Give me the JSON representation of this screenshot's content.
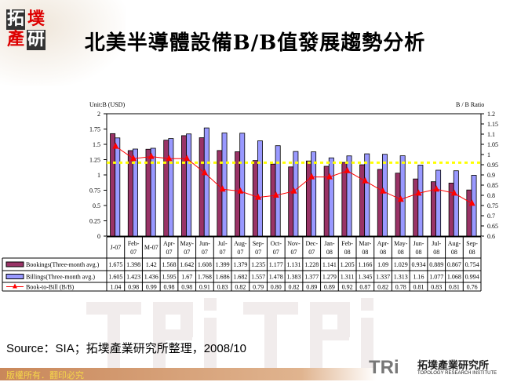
{
  "header": {
    "title": "北美半導體設備B/B值發展趨勢分析",
    "logo_chars": [
      "拓",
      "墣",
      "產",
      "研"
    ]
  },
  "footer": {
    "source": "Source：SIA；拓墣產業研究所整理，2008/10",
    "copyright": "版權所有．翻印必究",
    "brand_en": "TOPOLOGY RESEARCH INSTITUTE",
    "brand_cn": "拓墣產業研究所",
    "brand_logo": "TRi"
  },
  "chart_data": {
    "type": "bar",
    "ylabel_left": "Unit:B (USD)",
    "ylabel_right": "B / B Ratio",
    "ylim_left": [
      0,
      2
    ],
    "yticks_left": [
      "0",
      "0.25",
      "0.5",
      "0.75",
      "1",
      "1.25",
      "1.5",
      "1.75",
      "2"
    ],
    "ylim_right": [
      0.6,
      1.2
    ],
    "yticks_right": [
      "0.6",
      "0.65",
      "0.7",
      "0.75",
      "0.8",
      "0.85",
      "0.9",
      "0.95",
      "1",
      "1.05",
      "1.1",
      "1.15",
      "1.2"
    ],
    "categories": [
      "J-07",
      "Feb-07",
      "M-07",
      "Apr-07",
      "May-07",
      "Jun-07",
      "Jul-07",
      "Aug-07",
      "Sep-07",
      "Oct-07",
      "Nov-07",
      "Dec-07",
      "Jan-08",
      "Feb-08",
      "Mar-08",
      "Apr-08",
      "May-08",
      "Jun-08",
      "Jul-08",
      "Aug-08",
      "Sep-08"
    ],
    "series": [
      {
        "name": "Bookings(Three-month avg.)",
        "type": "bar",
        "axis": "left",
        "color": "#993366",
        "values": [
          1.675,
          1.398,
          1.42,
          1.568,
          1.642,
          1.608,
          1.399,
          1.379,
          1.235,
          1.177,
          1.131,
          1.228,
          1.141,
          1.205,
          1.166,
          1.09,
          1.029,
          0.934,
          0.889,
          0.867,
          0.754
        ]
      },
      {
        "name": "Billings(Three-month avg.)",
        "type": "bar",
        "axis": "left",
        "color": "#9999ff",
        "values": [
          1.605,
          1.423,
          1.436,
          1.595,
          1.67,
          1.768,
          1.686,
          1.682,
          1.557,
          1.478,
          1.383,
          1.377,
          1.279,
          1.311,
          1.345,
          1.337,
          1.313,
          1.16,
          1.077,
          1.068,
          0.994
        ]
      },
      {
        "name": "Book-to-Bill (B/B)",
        "type": "line",
        "axis": "right",
        "color": "#ff0000",
        "values": [
          1.04,
          0.98,
          0.99,
          0.98,
          0.98,
          0.91,
          0.83,
          0.82,
          0.79,
          0.8,
          0.82,
          0.89,
          0.89,
          0.92,
          0.87,
          0.82,
          0.78,
          0.81,
          0.83,
          0.81,
          0.76
        ]
      }
    ],
    "reference_line": {
      "axis": "left",
      "value": 1.2,
      "color": "#ffff00"
    },
    "legend": "data-table"
  }
}
